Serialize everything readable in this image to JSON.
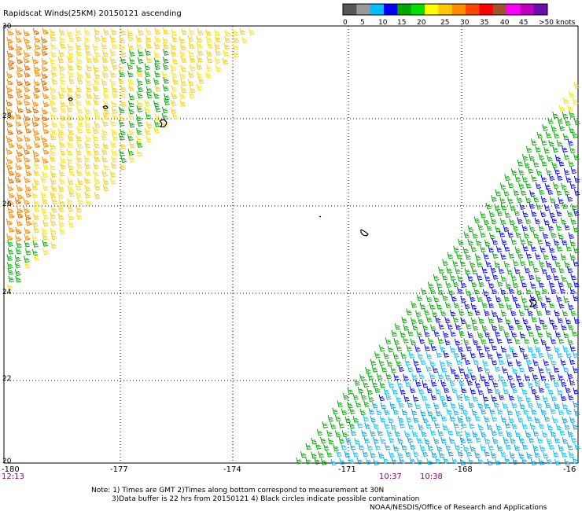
{
  "header": {
    "title": "Rapidscat Winds(25KM) 20150121 ascending"
  },
  "legend": {
    "swatches": [
      "#555555",
      "#999999",
      "#00bfff",
      "#0000ff",
      "#00a800",
      "#00e000",
      "#ffff00",
      "#ffc800",
      "#ff8c00",
      "#ff4500",
      "#ff0000",
      "#a0522d",
      "#ff00ff",
      "#c000c0",
      "#6a0dad"
    ],
    "labels": [
      "0",
      "5",
      "10",
      "15",
      "20",
      "25",
      "30",
      "35",
      "40",
      "45",
      ">50 knots"
    ]
  },
  "axes": {
    "lat_labels": [
      "30",
      "28",
      "26",
      "24",
      "22",
      "20"
    ],
    "lon_labels": [
      "-180",
      "-177",
      "-174",
      "-171",
      "-168",
      "-16"
    ],
    "time_labels": [
      "12:13",
      "10:37",
      "10:38"
    ]
  },
  "footer": {
    "note_line1": "Note: 1) Times are GMT 2)Times along bottom correspond to measurement at 30N",
    "note_line2": "3)Data buffer is 22 hrs from 20150121 4) Black circles indicate possible contamination",
    "credit": "NOAA/NESDIS/Office of Research and Applications"
  },
  "map_data": {
    "lon_range": [
      -180,
      -165
    ],
    "lat_range": [
      20,
      30
    ],
    "swaths": [
      {
        "side": "northwest",
        "dominant_colors": [
          "#ff8c00",
          "#ffc800",
          "#ffff00",
          "#00a800"
        ]
      },
      {
        "side": "southeast",
        "dominant_colors": [
          "#00a800",
          "#0000ff",
          "#00bfff",
          "#00e0e0"
        ]
      }
    ]
  }
}
